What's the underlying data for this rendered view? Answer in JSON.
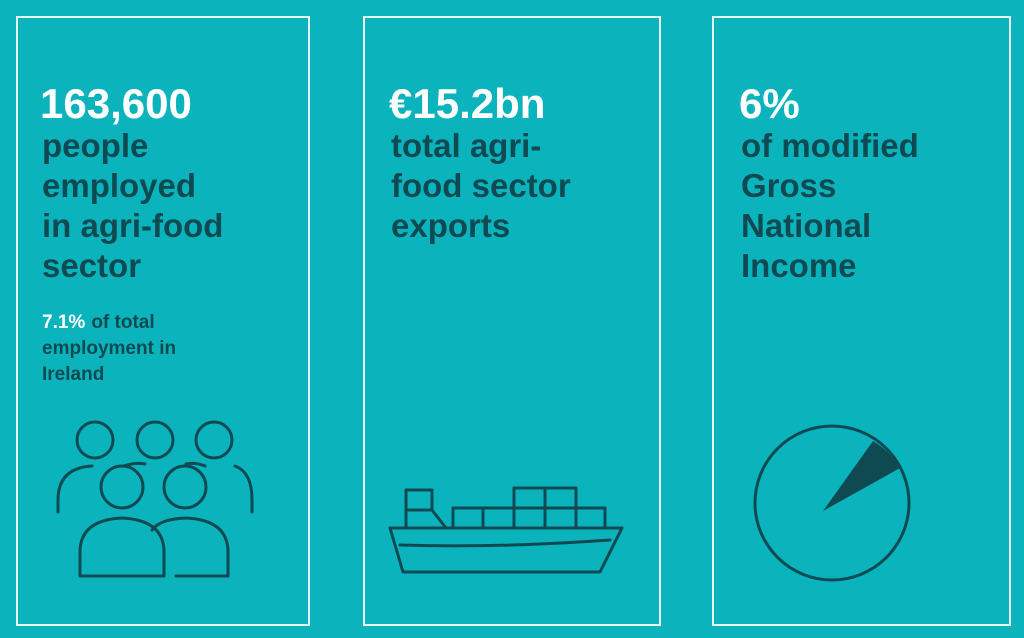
{
  "panels": [
    {
      "headline": "163,600",
      "description": [
        "people",
        "employed",
        "in agri-food",
        "sector"
      ],
      "note_emphasis": "7.1%",
      "note": [
        "of total",
        "employment in",
        "Ireland"
      ]
    },
    {
      "headline": "€15.2bn",
      "description": [
        "total agri-",
        "food sector",
        "exports"
      ]
    },
    {
      "headline": "6%",
      "description": [
        "of modified",
        "Gross",
        "National",
        "Income"
      ]
    }
  ]
}
